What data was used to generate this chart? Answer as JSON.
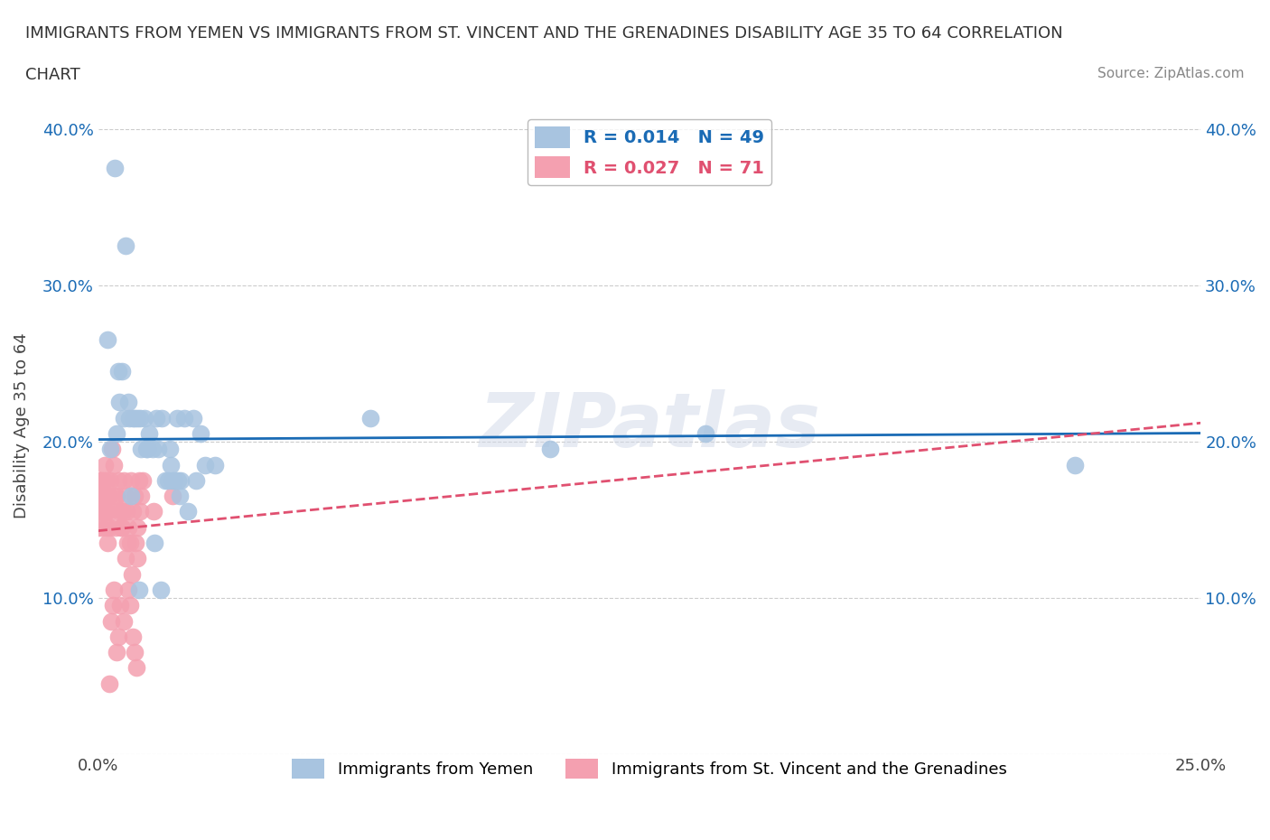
{
  "title_line1": "IMMIGRANTS FROM YEMEN VS IMMIGRANTS FROM ST. VINCENT AND THE GRENADINES DISABILITY AGE 35 TO 64 CORRELATION",
  "title_line2": "CHART",
  "source": "Source: ZipAtlas.com",
  "ylabel": "Disability Age 35 to 64",
  "watermark": "ZIPatlas",
  "yemen_x": [
    0.0028,
    0.0055,
    0.0082,
    0.0041,
    0.0068,
    0.0095,
    0.011,
    0.0123,
    0.0145,
    0.0162,
    0.0178,
    0.0195,
    0.0215,
    0.0232,
    0.0048,
    0.0071,
    0.0089,
    0.0105,
    0.0132,
    0.0158,
    0.0172,
    0.0188,
    0.0204,
    0.0221,
    0.0242,
    0.0265,
    0.0022,
    0.0045,
    0.0063,
    0.0078,
    0.0098,
    0.0115,
    0.0135,
    0.0152,
    0.0168,
    0.0185,
    0.0038,
    0.0058,
    0.0075,
    0.0092,
    0.0112,
    0.0128,
    0.0142,
    0.0165,
    0.0182,
    0.0618,
    0.1025,
    0.1378,
    0.2215
  ],
  "yemen_y": [
    0.195,
    0.245,
    0.215,
    0.205,
    0.225,
    0.215,
    0.195,
    0.195,
    0.215,
    0.195,
    0.215,
    0.215,
    0.215,
    0.205,
    0.225,
    0.215,
    0.215,
    0.215,
    0.215,
    0.175,
    0.175,
    0.175,
    0.155,
    0.175,
    0.185,
    0.185,
    0.265,
    0.245,
    0.325,
    0.215,
    0.195,
    0.205,
    0.195,
    0.175,
    0.175,
    0.165,
    0.375,
    0.215,
    0.165,
    0.105,
    0.195,
    0.135,
    0.105,
    0.185,
    0.175,
    0.215,
    0.195,
    0.205,
    0.185
  ],
  "stvincent_x": [
    0.0005,
    0.0008,
    0.0012,
    0.0015,
    0.0018,
    0.0021,
    0.0025,
    0.0028,
    0.0032,
    0.0035,
    0.0038,
    0.0042,
    0.0045,
    0.0048,
    0.0052,
    0.0055,
    0.0058,
    0.0062,
    0.0065,
    0.0068,
    0.0072,
    0.0075,
    0.0078,
    0.0082,
    0.0085,
    0.0088,
    0.0092,
    0.0095,
    0.0098,
    0.0002,
    0.0004,
    0.0006,
    0.0009,
    0.0011,
    0.0013,
    0.0016,
    0.0019,
    0.0022,
    0.0024,
    0.0027,
    0.003,
    0.0033,
    0.0036,
    0.0039,
    0.0042,
    0.0046,
    0.0049,
    0.0053,
    0.0056,
    0.0059,
    0.0063,
    0.0066,
    0.0069,
    0.0073,
    0.0076,
    0.0079,
    0.0083,
    0.0086,
    0.0089,
    0.0001,
    0.0003,
    0.0007,
    0.001,
    0.0014,
    0.0017,
    0.002,
    0.0023,
    0.0026,
    0.0102,
    0.0125,
    0.0168
  ],
  "stvincent_y": [
    0.175,
    0.155,
    0.165,
    0.185,
    0.165,
    0.155,
    0.145,
    0.175,
    0.195,
    0.185,
    0.165,
    0.165,
    0.175,
    0.155,
    0.145,
    0.155,
    0.175,
    0.165,
    0.155,
    0.145,
    0.135,
    0.175,
    0.155,
    0.165,
    0.135,
    0.145,
    0.175,
    0.155,
    0.165,
    0.175,
    0.165,
    0.145,
    0.155,
    0.165,
    0.175,
    0.155,
    0.145,
    0.135,
    0.165,
    0.155,
    0.085,
    0.095,
    0.105,
    0.145,
    0.065,
    0.075,
    0.095,
    0.145,
    0.155,
    0.085,
    0.125,
    0.135,
    0.105,
    0.095,
    0.115,
    0.075,
    0.065,
    0.055,
    0.125,
    0.145,
    0.165,
    0.175,
    0.155,
    0.165,
    0.155,
    0.175,
    0.165,
    0.045,
    0.175,
    0.155,
    0.165
  ],
  "yemen_color": "#a8c4e0",
  "stvincent_color": "#f4a0b0",
  "yemen_line_color": "#1a6bb5",
  "stvincent_line_color": "#e05070",
  "R_yemen": 0.014,
  "N_yemen": 49,
  "R_stvincent": 0.027,
  "N_stvincent": 71,
  "xlim": [
    0.0,
    0.25
  ],
  "ylim": [
    0.0,
    0.42
  ],
  "xticks": [
    0.0,
    0.05,
    0.1,
    0.15,
    0.2,
    0.25
  ],
  "xtick_labels": [
    "0.0%",
    "",
    "",
    "",
    "",
    "25.0%"
  ],
  "yticks": [
    0.0,
    0.1,
    0.2,
    0.3,
    0.4
  ],
  "ytick_labels": [
    "",
    "10.0%",
    "20.0%",
    "30.0%",
    "40.0%"
  ],
  "legend_yemen_label": "Immigrants from Yemen",
  "legend_stvincent_label": "Immigrants from St. Vincent and the Grenadines",
  "background_color": "#ffffff",
  "grid_color": "#cccccc"
}
